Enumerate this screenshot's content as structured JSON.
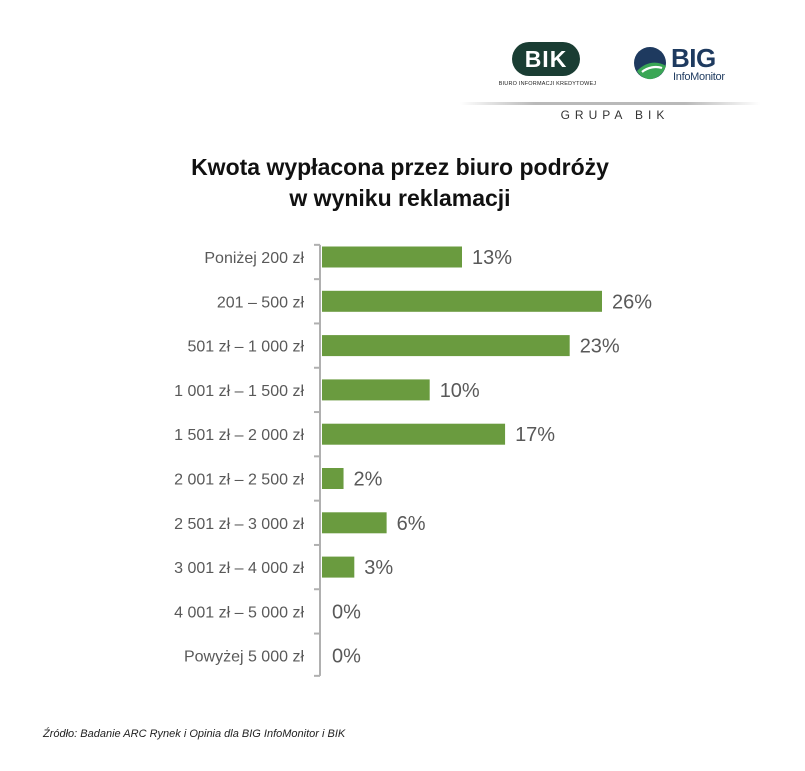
{
  "logos": {
    "bik": {
      "name": "BIK",
      "tagline": "BIURO INFORMACJI KREDYTOWEJ"
    },
    "big": {
      "name": "BIG",
      "subname": "InfoMonitor"
    },
    "group_label": "GRUPA BIK",
    "colors": {
      "bik_dark": "#1a3d33",
      "big_navy": "#1e3a5f",
      "big_green": "#3aa655"
    }
  },
  "chart_data": {
    "type": "bar",
    "orientation": "horizontal",
    "title": [
      "Kwota wypłacona przez biuro podróży",
      "w wyniku reklamacji"
    ],
    "categories": [
      "Poniżej 200 zł",
      "201 – 500 zł",
      "501 zł – 1 000 zł",
      "1 001 zł – 1 500 zł",
      "1 501 zł – 2 000 zł",
      "2 001 zł – 2 500 zł",
      "2 501 zł – 3 000 zł",
      "3 001 zł – 4 000 zł",
      "4 001 zł – 5 000 zł",
      "Powyżej 5 000 zł"
    ],
    "values": [
      13,
      26,
      23,
      10,
      17,
      2,
      6,
      3,
      0,
      0
    ],
    "value_labels": [
      "13%",
      "26%",
      "23%",
      "10%",
      "17%",
      "2%",
      "6%",
      "3%",
      "0%",
      "0%"
    ],
    "unit": "%",
    "xlim": [
      0,
      26
    ],
    "grid": false,
    "legend": "none",
    "bar_color": "#6a9b3f",
    "axis_color": "#b0b0b0",
    "label_color": "#595959"
  },
  "footnote": "Źródło: Badanie ARC Rynek i Opinia dla BIG InfoMonitor i BIK"
}
